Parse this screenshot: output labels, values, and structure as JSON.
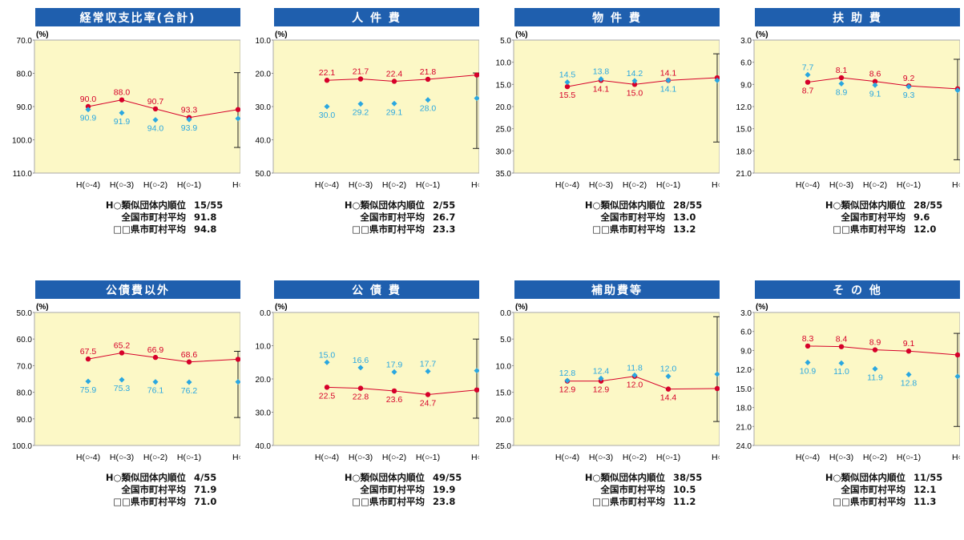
{
  "stat_labels": [
    "H○類似団体内順位",
    "全国市町村平均",
    "□□県市町村平均"
  ],
  "x_labels": [
    "H(○-4)",
    "H(○-3)",
    "H(○-2)",
    "H(○-1)",
    "H○"
  ],
  "unit": "(%)",
  "colors": {
    "red": "#d6002a",
    "blue": "#2aa7e0",
    "bg": "#fcf8c6"
  },
  "chart_data": [
    {
      "type": "line",
      "title": "経常収支比率(合計)",
      "yticks": [
        "70.0",
        "80.0",
        "90.0",
        "100.0",
        "110.0"
      ],
      "ylim": [
        70,
        110
      ],
      "series": [
        {
          "values": [
            90.0,
            88.0,
            90.7,
            93.3,
            90.9
          ]
        },
        {
          "values": [
            90.9,
            91.9,
            94.0,
            93.9,
            93.6
          ]
        }
      ],
      "range": {
        "top": 79.8,
        "bottom": 102.3
      },
      "stats": [
        "15/55",
        "91.8",
        "94.8"
      ]
    },
    {
      "type": "line",
      "title": "人 件 費",
      "yticks": [
        "10.0",
        "20.0",
        "30.0",
        "40.0",
        "50.0"
      ],
      "ylim": [
        10,
        50
      ],
      "series": [
        {
          "values": [
            22.1,
            21.7,
            22.4,
            21.8,
            20.5
          ]
        },
        {
          "values": [
            30.0,
            29.2,
            29.1,
            28.0,
            27.5
          ]
        }
      ],
      "range": {
        "top": 19.9,
        "bottom": 42.6
      },
      "stats": [
        "2/55",
        "26.7",
        "23.3"
      ]
    },
    {
      "type": "line",
      "title": "物 件 費",
      "yticks": [
        "5.0",
        "10.0",
        "15.0",
        "20.0",
        "25.0",
        "30.0",
        "35.0"
      ],
      "ylim": [
        5,
        35
      ],
      "series": [
        {
          "values": [
            15.5,
            14.1,
            15.0,
            14.1,
            13.5
          ]
        },
        {
          "values": [
            14.5,
            13.8,
            14.2,
            14.1,
            14.1
          ]
        }
      ],
      "range": {
        "top": 8.1,
        "bottom": 28.0
      },
      "stats": [
        "28/55",
        "13.0",
        "13.2"
      ]
    },
    {
      "type": "line",
      "title": "扶 助 費",
      "yticks": [
        "3.0",
        "6.0",
        "9.0",
        "12.0",
        "15.0",
        "18.0",
        "21.0"
      ],
      "ylim": [
        3,
        21
      ],
      "series": [
        {
          "values": [
            8.7,
            8.1,
            8.6,
            9.2,
            9.6
          ]
        },
        {
          "values": [
            7.7,
            8.9,
            9.1,
            9.3,
            9.8
          ]
        }
      ],
      "range": {
        "top": 5.6,
        "bottom": 19.2
      },
      "stats": [
        "28/55",
        "9.6",
        "12.0"
      ]
    },
    {
      "type": "line",
      "title": "公債費以外",
      "yticks": [
        "50.0",
        "60.0",
        "70.0",
        "80.0",
        "90.0",
        "100.0"
      ],
      "ylim": [
        50,
        100
      ],
      "series": [
        {
          "values": [
            67.5,
            65.2,
            66.9,
            68.6,
            67.6
          ]
        },
        {
          "values": [
            75.9,
            75.3,
            76.1,
            76.2,
            76.1
          ]
        }
      ],
      "range": {
        "top": 64.6,
        "bottom": 89.5
      },
      "stats": [
        "4/55",
        "71.9",
        "71.0"
      ]
    },
    {
      "type": "line",
      "title": "公 債 費",
      "yticks": [
        "0.0",
        "10.0",
        "20.0",
        "30.0",
        "40.0"
      ],
      "ylim": [
        0,
        40
      ],
      "series": [
        {
          "values": [
            22.5,
            22.8,
            23.6,
            24.7,
            23.3
          ]
        },
        {
          "values": [
            15.0,
            16.6,
            17.9,
            17.7,
            17.5
          ]
        }
      ],
      "range": {
        "top": 8.0,
        "bottom": 31.8
      },
      "stats": [
        "49/55",
        "19.9",
        "23.8"
      ]
    },
    {
      "type": "line",
      "title": "補助費等",
      "yticks": [
        "0.0",
        "5.0",
        "10.0",
        "15.0",
        "20.0",
        "25.0"
      ],
      "ylim": [
        0,
        25
      ],
      "series": [
        {
          "values": [
            12.9,
            12.9,
            12.0,
            14.4,
            14.3
          ]
        },
        {
          "values": [
            12.8,
            12.4,
            11.8,
            12.0,
            11.6
          ]
        }
      ],
      "range": {
        "top": 0.8,
        "bottom": 20.5
      },
      "stats": [
        "38/55",
        "10.5",
        "11.2"
      ]
    },
    {
      "type": "line",
      "title": "そ の 他",
      "yticks": [
        "3.0",
        "6.0",
        "9.0",
        "12.0",
        "15.0",
        "18.0",
        "21.0",
        "24.0"
      ],
      "ylim": [
        3,
        24
      ],
      "series": [
        {
          "values": [
            8.3,
            8.4,
            8.9,
            9.1,
            9.7
          ]
        },
        {
          "values": [
            10.9,
            11.0,
            11.9,
            12.8,
            13.1
          ]
        }
      ],
      "range": {
        "top": 6.3,
        "bottom": 21.0
      },
      "stats": [
        "11/55",
        "12.1",
        "11.3"
      ]
    }
  ]
}
